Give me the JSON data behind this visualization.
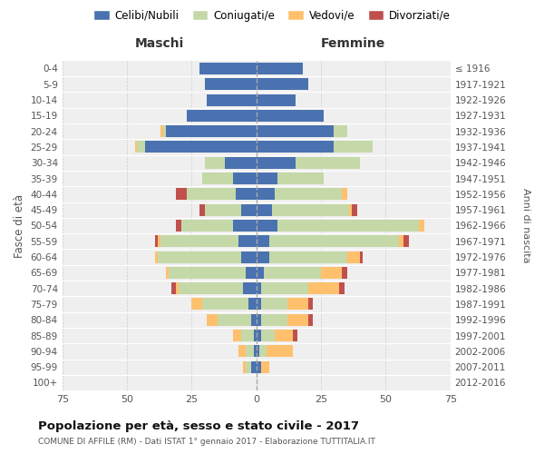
{
  "age_groups": [
    "0-4",
    "5-9",
    "10-14",
    "15-19",
    "20-24",
    "25-29",
    "30-34",
    "35-39",
    "40-44",
    "45-49",
    "50-54",
    "55-59",
    "60-64",
    "65-69",
    "70-74",
    "75-79",
    "80-84",
    "85-89",
    "90-94",
    "95-99",
    "100+"
  ],
  "birth_years": [
    "2012-2016",
    "2007-2011",
    "2002-2006",
    "1997-2001",
    "1992-1996",
    "1987-1991",
    "1982-1986",
    "1977-1981",
    "1972-1976",
    "1967-1971",
    "1962-1966",
    "1957-1961",
    "1952-1956",
    "1947-1951",
    "1942-1946",
    "1937-1941",
    "1932-1936",
    "1927-1931",
    "1922-1926",
    "1917-1921",
    "≤ 1916"
  ],
  "males_celibi": [
    22,
    20,
    19,
    27,
    35,
    43,
    12,
    9,
    8,
    6,
    9,
    7,
    6,
    4,
    5,
    3,
    2,
    1,
    1,
    2,
    0
  ],
  "males_coniugati": [
    0,
    0,
    0,
    0,
    1,
    3,
    8,
    12,
    19,
    14,
    20,
    30,
    32,
    30,
    25,
    18,
    13,
    5,
    3,
    2,
    0
  ],
  "males_vedovi": [
    0,
    0,
    0,
    0,
    1,
    1,
    0,
    0,
    0,
    0,
    0,
    1,
    1,
    1,
    1,
    4,
    4,
    3,
    3,
    1,
    0
  ],
  "males_divorziati": [
    0,
    0,
    0,
    0,
    0,
    0,
    0,
    0,
    4,
    2,
    2,
    1,
    0,
    0,
    2,
    0,
    0,
    0,
    0,
    0,
    0
  ],
  "females_nubili": [
    18,
    20,
    15,
    26,
    30,
    30,
    15,
    8,
    7,
    6,
    8,
    5,
    5,
    3,
    2,
    2,
    2,
    2,
    1,
    2,
    0
  ],
  "females_coniugate": [
    0,
    0,
    0,
    0,
    5,
    15,
    25,
    18,
    26,
    30,
    55,
    50,
    30,
    22,
    18,
    10,
    10,
    5,
    3,
    0,
    0
  ],
  "females_vedove": [
    0,
    0,
    0,
    0,
    0,
    0,
    0,
    0,
    2,
    1,
    2,
    2,
    5,
    8,
    12,
    8,
    8,
    7,
    10,
    3,
    0
  ],
  "females_divorziate": [
    0,
    0,
    0,
    0,
    0,
    0,
    0,
    0,
    0,
    2,
    0,
    2,
    1,
    2,
    2,
    2,
    2,
    2,
    0,
    0,
    0
  ],
  "colors": {
    "celibi": "#4a72b0",
    "coniugati": "#c5d9a8",
    "vedovi": "#ffc06e",
    "divorziati": "#c0504d"
  },
  "xlim": 75,
  "title": "Popolazione per età, sesso e stato civile - 2017",
  "subtitle": "COMUNE DI AFFILE (RM) - Dati ISTAT 1° gennaio 2017 - Elaborazione TUTTITALIA.IT",
  "ylabel": "Fasce di età",
  "right_ylabel": "Anni di nascita",
  "legend_labels": [
    "Celibi/Nubili",
    "Coniugati/e",
    "Vedovi/e",
    "Divorziati/e"
  ],
  "bg_color": "#efefef"
}
